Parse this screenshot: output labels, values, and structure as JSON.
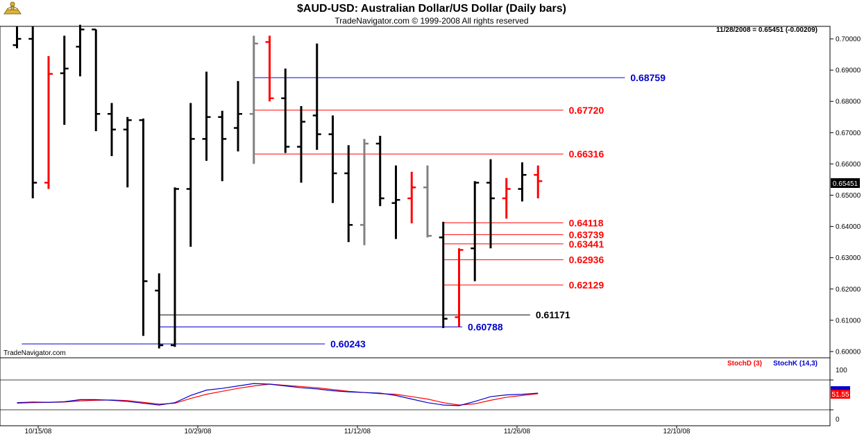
{
  "header": {
    "title": "$AUD-USD:  Australian Dollar/US Dollar  (Daily bars)",
    "subtitle": "TradeNavigator.com © 1999-2008 All rights reserved",
    "status": "11/28/2008 = 0.65451 (-0.00209)",
    "watermark": "TradeNavigator.com",
    "last_price": "0.65451"
  },
  "colors": {
    "up": "#000000",
    "down": "#ff0000",
    "neutral": "#808080",
    "blue": "#0000cc",
    "red": "#ff0000"
  },
  "chart_data": [
    {
      "type": "ohlc",
      "title": "$AUD-USD:  Australian Dollar/US Dollar  (Daily bars)",
      "ylim": [
        0.598,
        0.704
      ],
      "y_ticks": [
        "0.70000",
        "0.69000",
        "0.68000",
        "0.67000",
        "0.66000",
        "0.65000",
        "0.64000",
        "0.63000",
        "0.62000",
        "0.61000",
        "0.60000"
      ],
      "x_ticks": [
        "10/15/08",
        "10/29/08",
        "11/12/08",
        "11/26/08",
        "12/10/08"
      ],
      "bars": [
        {
          "i": 0,
          "o": 0.698,
          "h": 0.704,
          "l": 0.697,
          "c": 0.7,
          "col": "up"
        },
        {
          "i": 1,
          "o": 0.7,
          "h": 0.704,
          "l": 0.649,
          "c": 0.654,
          "col": "up"
        },
        {
          "i": 2,
          "o": 0.654,
          "h": 0.6945,
          "l": 0.652,
          "c": 0.6888,
          "col": "down"
        },
        {
          "i": 3,
          "o": 0.689,
          "h": 0.701,
          "l": 0.6725,
          "c": 0.6905,
          "col": "up"
        },
        {
          "i": 4,
          "o": 0.6975,
          "h": 0.7045,
          "l": 0.688,
          "c": 0.703,
          "col": "up"
        },
        {
          "i": 5,
          "o": 0.703,
          "h": 0.703,
          "l": 0.6705,
          "c": 0.676,
          "col": "up"
        },
        {
          "i": 6,
          "o": 0.676,
          "h": 0.6795,
          "l": 0.6625,
          "c": 0.671,
          "col": "up"
        },
        {
          "i": 7,
          "o": 0.671,
          "h": 0.675,
          "l": 0.6525,
          "c": 0.674,
          "col": "up"
        },
        {
          "i": 8,
          "o": 0.674,
          "h": 0.6745,
          "l": 0.605,
          "c": 0.6225,
          "col": "up"
        },
        {
          "i": 9,
          "o": 0.6195,
          "h": 0.625,
          "l": 0.601,
          "c": 0.602,
          "col": "up"
        },
        {
          "i": 10,
          "o": 0.602,
          "h": 0.6525,
          "l": 0.6015,
          "c": 0.652,
          "col": "up"
        },
        {
          "i": 11,
          "o": 0.652,
          "h": 0.6795,
          "l": 0.6335,
          "c": 0.668,
          "col": "up"
        },
        {
          "i": 12,
          "o": 0.668,
          "h": 0.6895,
          "l": 0.661,
          "c": 0.675,
          "col": "up"
        },
        {
          "i": 13,
          "o": 0.675,
          "h": 0.677,
          "l": 0.6545,
          "c": 0.668,
          "col": "up"
        },
        {
          "i": 14,
          "o": 0.6715,
          "h": 0.6865,
          "l": 0.664,
          "c": 0.676,
          "col": "up"
        },
        {
          "i": 15,
          "o": 0.676,
          "h": 0.701,
          "l": 0.66,
          "c": 0.6985,
          "col": "neutral"
        },
        {
          "i": 16,
          "o": 0.699,
          "h": 0.701,
          "l": 0.68,
          "c": 0.681,
          "col": "down"
        },
        {
          "i": 17,
          "o": 0.681,
          "h": 0.6905,
          "l": 0.6635,
          "c": 0.6655,
          "col": "up"
        },
        {
          "i": 18,
          "o": 0.6655,
          "h": 0.6785,
          "l": 0.654,
          "c": 0.6735,
          "col": "up"
        },
        {
          "i": 19,
          "o": 0.6755,
          "h": 0.6985,
          "l": 0.6645,
          "c": 0.6695,
          "col": "up"
        },
        {
          "i": 20,
          "o": 0.6695,
          "h": 0.6755,
          "l": 0.6475,
          "c": 0.657,
          "col": "up"
        },
        {
          "i": 21,
          "o": 0.657,
          "h": 0.666,
          "l": 0.635,
          "c": 0.6405,
          "col": "up"
        },
        {
          "i": 22,
          "o": 0.6405,
          "h": 0.668,
          "l": 0.634,
          "c": 0.6665,
          "col": "neutral"
        },
        {
          "i": 23,
          "o": 0.6665,
          "h": 0.669,
          "l": 0.6465,
          "c": 0.649,
          "col": "up"
        },
        {
          "i": 24,
          "o": 0.6475,
          "h": 0.6595,
          "l": 0.636,
          "c": 0.6485,
          "col": "up"
        },
        {
          "i": 25,
          "o": 0.649,
          "h": 0.6575,
          "l": 0.641,
          "c": 0.6525,
          "col": "down"
        },
        {
          "i": 26,
          "o": 0.6525,
          "h": 0.6595,
          "l": 0.6365,
          "c": 0.637,
          "col": "neutral"
        },
        {
          "i": 27,
          "o": 0.6365,
          "h": 0.6415,
          "l": 0.6075,
          "c": 0.6105,
          "col": "up"
        },
        {
          "i": 28,
          "o": 0.611,
          "h": 0.633,
          "l": 0.608,
          "c": 0.6325,
          "col": "down"
        },
        {
          "i": 29,
          "o": 0.633,
          "h": 0.6545,
          "l": 0.6225,
          "c": 0.654,
          "col": "up"
        },
        {
          "i": 30,
          "o": 0.654,
          "h": 0.6615,
          "l": 0.633,
          "c": 0.649,
          "col": "up"
        },
        {
          "i": 31,
          "o": 0.649,
          "h": 0.6555,
          "l": 0.6425,
          "c": 0.652,
          "col": "down"
        },
        {
          "i": 32,
          "o": 0.652,
          "h": 0.6605,
          "l": 0.648,
          "c": 0.6565,
          "col": "up"
        },
        {
          "i": 33,
          "o": 0.6565,
          "h": 0.6595,
          "l": 0.649,
          "c": 0.6545,
          "col": "down"
        }
      ],
      "levels": [
        {
          "value": 0.68759,
          "label": "0.68759",
          "color": "blue",
          "from": 15,
          "to": 38.5
        },
        {
          "value": 0.6772,
          "label": "0.67720",
          "color": "red",
          "from": 15,
          "to": 34.6
        },
        {
          "value": 0.66316,
          "label": "0.66316",
          "color": "red",
          "from": 15,
          "to": 34.6
        },
        {
          "value": 0.64118,
          "label": "0.64118",
          "color": "red",
          "from": 27,
          "to": 34.6
        },
        {
          "value": 0.63739,
          "label": "0.63739",
          "color": "red",
          "from": 27,
          "to": 34.6
        },
        {
          "value": 0.63441,
          "label": "0.63441",
          "color": "red",
          "from": 27,
          "to": 34.6
        },
        {
          "value": 0.62936,
          "label": "0.62936",
          "color": "red",
          "from": 27,
          "to": 34.6
        },
        {
          "value": 0.62129,
          "label": "0.62129",
          "color": "red",
          "from": 27,
          "to": 34.6
        },
        {
          "value": 0.61171,
          "label": "0.61171",
          "color": "up",
          "from": 9,
          "to": 32.5
        },
        {
          "value": 0.60788,
          "label": "0.60788",
          "color": "blue",
          "from": 9,
          "to": 28.2
        },
        {
          "value": 0.60243,
          "label": "0.60243",
          "color": "blue",
          "from": 0.3,
          "to": 19.5
        }
      ]
    },
    {
      "type": "line",
      "legend": [
        "StochD (3)",
        "StochK (14,3)"
      ],
      "ylim": [
        0,
        100
      ],
      "y_ticks": [
        "100",
        "0"
      ],
      "current_value": "51.55",
      "series": [
        {
          "name": "StochD (3)",
          "color": "#ff0000",
          "values": [
            22,
            24,
            25,
            26,
            30,
            32,
            33,
            31,
            25,
            19,
            22,
            38,
            52,
            62,
            72,
            80,
            86,
            82,
            78,
            74,
            68,
            62,
            58,
            54,
            52,
            44,
            36,
            24,
            16,
            20,
            32,
            42,
            48,
            54
          ]
        },
        {
          "name": "StochK (14,3)",
          "color": "#0000cc",
          "values": [
            24,
            26,
            25,
            27,
            34,
            34,
            32,
            28,
            22,
            16,
            24,
            48,
            66,
            72,
            80,
            88,
            86,
            80,
            74,
            70,
            64,
            60,
            58,
            56,
            48,
            36,
            24,
            16,
            14,
            28,
            44,
            50,
            52,
            56
          ]
        }
      ]
    }
  ]
}
